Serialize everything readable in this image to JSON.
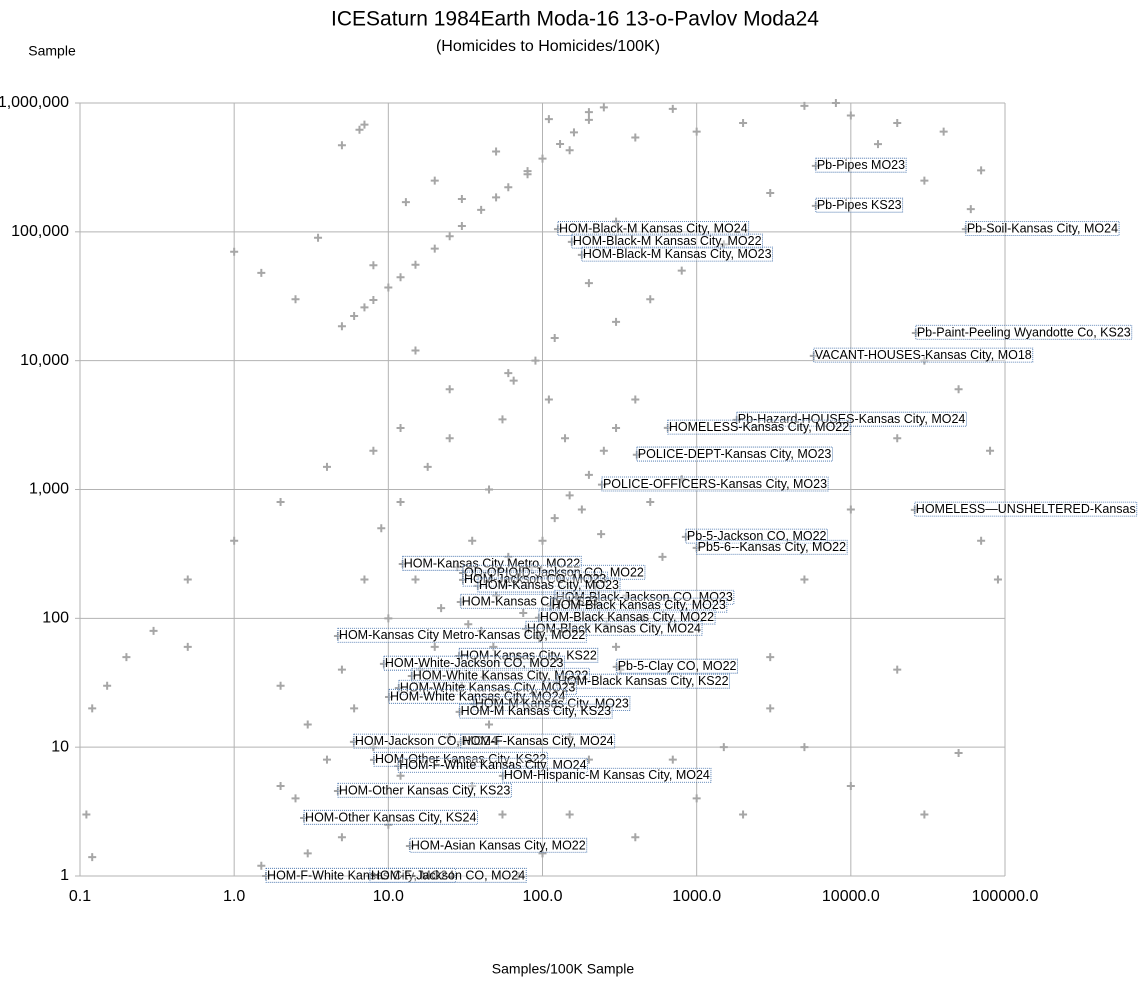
{
  "chart_data": {
    "type": "scatter",
    "title": "ICESaturn 1984Earth Moda-16 13-o-Pavlov Moda24",
    "subtitle": "(Homicides to Homicides/100K)",
    "x_label": "Samples/100K Sample",
    "y_label": "Sample",
    "xscale": "log",
    "yscale": "log",
    "grid": true,
    "color": "#a6a6a6",
    "xlim": [
      0.1,
      100000
    ],
    "ylim": [
      1,
      1000000
    ],
    "xticks": [
      {
        "value": 0.1,
        "label": "0.1"
      },
      {
        "value": 1,
        "label": "1.0"
      },
      {
        "value": 10,
        "label": "10.0"
      },
      {
        "value": 100,
        "label": "100.0"
      },
      {
        "value": 1000,
        "label": "1000.0"
      },
      {
        "value": 10000,
        "label": "10000.0"
      },
      {
        "value": 100000,
        "label": "100000.0"
      }
    ],
    "yticks": [
      1,
      10,
      100,
      {
        "value": 1000,
        "label": "1,000"
      },
      {
        "value": 10000,
        "label": "10,000"
      },
      {
        "value": 100000,
        "label": "100,000"
      },
      {
        "value": 1000000,
        "label": "1,000,000"
      }
    ],
    "x": [
      5,
      6,
      7,
      8,
      10,
      12,
      15,
      20,
      25,
      30,
      40,
      50,
      60,
      80,
      100,
      130,
      160,
      200,
      250,
      5,
      6.5,
      7,
      13,
      20,
      30,
      50,
      80,
      110,
      150,
      200,
      300,
      400,
      700,
      1000,
      2000,
      5000,
      8000,
      10000,
      20000,
      40000,
      70000,
      60000,
      30000,
      15000,
      3000,
      1500,
      800,
      500,
      300,
      200,
      120,
      60,
      25,
      12,
      8,
      4,
      2,
      1,
      0.5,
      0.3,
      0.2,
      0.15,
      0.12,
      0.11,
      0.12,
      0.5,
      1,
      1.5,
      2.5,
      3.5,
      8,
      15,
      2,
      3,
      5,
      1.5,
      1000,
      2000,
      1500,
      3000,
      5000,
      10000,
      20000,
      30000,
      50000,
      70000,
      90000,
      80000,
      50000,
      30000,
      20000,
      10000,
      5000,
      3000,
      700,
      400,
      300,
      150,
      10,
      15,
      20,
      30,
      40,
      50,
      60,
      70,
      80,
      100,
      120,
      150,
      200,
      250,
      300,
      400,
      500,
      600,
      800,
      5,
      6,
      8,
      3,
      4,
      2,
      2.5,
      7,
      9,
      12,
      18,
      25,
      35,
      45,
      55,
      65,
      90,
      110,
      140,
      180,
      220,
      260,
      320,
      25,
      35,
      45,
      55,
      20,
      12,
      10,
      70,
      100,
      150,
      200,
      16,
      22,
      28,
      33,
      42,
      48,
      58,
      75,
      85,
      95,
      130,
      170,
      240,
      350,
      450
    ],
    "y": [
      18500,
      22200,
      25900,
      29600,
      37000,
      44400,
      55500,
      74000,
      92500,
      111000,
      148000,
      185000,
      222000,
      296000,
      370000,
      481000,
      592000,
      740000,
      925000,
      470000,
      620000,
      680000,
      170000,
      250000,
      180000,
      420000,
      280000,
      750000,
      430000,
      850000,
      120000,
      540000,
      900000,
      600000,
      700000,
      950000,
      1000000,
      800000,
      700000,
      600000,
      300000,
      150000,
      250000,
      480000,
      200000,
      80000,
      50000,
      30000,
      20000,
      40000,
      15000,
      8000,
      6000,
      3000,
      2000,
      1500,
      800,
      400,
      200,
      80,
      50,
      30,
      20,
      3,
      1.4,
      60,
      70000,
      48000,
      30000,
      90000,
      55000,
      12000,
      5,
      1.5,
      2,
      1.2,
      4,
      3,
      10,
      20,
      10,
      5,
      40,
      3,
      9,
      400,
      200,
      2000,
      6000,
      10000,
      2500,
      700,
      200,
      50,
      8,
      2,
      60,
      3,
      100,
      200,
      60,
      30,
      80,
      150,
      300,
      50,
      20,
      400,
      600,
      900,
      1300,
      2000,
      3000,
      5000,
      800,
      300,
      1200,
      40,
      20,
      10,
      15,
      8,
      30,
      4,
      200,
      500,
      800,
      1500,
      2500,
      400,
      1000,
      3500,
      7000,
      10000,
      5000,
      2500,
      700,
      180,
      90,
      40,
      12,
      5,
      15,
      3,
      1,
      6,
      2.5,
      1,
      1.5,
      12,
      8,
      40,
      120,
      250,
      90,
      35,
      60,
      180,
      110,
      250,
      70,
      200,
      130,
      450,
      150,
      100
    ],
    "annotations": [
      {
        "text": "Pb-Pipes MO23",
        "x": 5930,
        "y": 325000
      },
      {
        "text": "Pb-Pipes KS23",
        "x": 5930,
        "y": 159000
      },
      {
        "text": "Pb-Soil-Kansas City, MO24",
        "x": 55700,
        "y": 105000
      },
      {
        "text": "HOM-Black-M Kansas City, MO24",
        "x": 126,
        "y": 105000
      },
      {
        "text": "HOM-Black-M Kansas City, MO22",
        "x": 155,
        "y": 83600
      },
      {
        "text": "HOM-Black-M Kansas City, MO23",
        "x": 180,
        "y": 66300
      },
      {
        "text": "Pb-Paint-Peeling Wyandotte Co, KS23",
        "x": 26400,
        "y": 16400
      },
      {
        "text": "VACANT-HOUSES-Kansas City, MO18",
        "x": 5750,
        "y": 10900
      },
      {
        "text": "Pb-Hazard-HOUSES-Kansas City, MO24",
        "x": 1820,
        "y": 3470
      },
      {
        "text": "HOMELESS-Kansas City, MO22",
        "x": 650,
        "y": 3010
      },
      {
        "text": "POLICE-DEPT-Kansas City, MO23",
        "x": 409,
        "y": 1860
      },
      {
        "text": "POLICE-OFFICERS-Kansas City, MO23",
        "x": 243,
        "y": 1090
      },
      {
        "text": "HOMELESS—UNSHELTERED-Kansas",
        "x": 26000,
        "y": 695
      },
      {
        "text": "Pb-5-Jackson CO, MO22",
        "x": 851,
        "y": 429
      },
      {
        "text": "Pb5-6--Kansas City, MO22",
        "x": 1000,
        "y": 352
      },
      {
        "text": "HOM-Kansas City Metro, MO22",
        "x": 12.4,
        "y": 264
      },
      {
        "text": "OD-OPIOID-Jackson CO, MO22",
        "x": 30.5,
        "y": 225
      },
      {
        "text": "HOM-Jackson CO, MO23",
        "x": 30.5,
        "y": 199
      },
      {
        "text": "HOM-Kansas City, MO23",
        "x": 38.1,
        "y": 179
      },
      {
        "text": "HOM-Black-Jackson CO, MO23",
        "x": 120,
        "y": 144
      },
      {
        "text": "HOM-Kansas City, KS23",
        "x": 29.5,
        "y": 134
      },
      {
        "text": "HOM-Black Kansas City, MO23",
        "x": 113,
        "y": 125
      },
      {
        "text": "HOM-Black Kansas City, MO22",
        "x": 94.8,
        "y": 101
      },
      {
        "text": "HOM-Black Kansas City, MO24",
        "x": 78,
        "y": 82.7
      },
      {
        "text": "HOM-Kansas City Metro-Kansas City, MO22",
        "x": 4.71,
        "y": 73
      },
      {
        "text": "HOM-Kansas City, KS22",
        "x": 28.8,
        "y": 51
      },
      {
        "text": "HOM-White-Jackson CO, MO23",
        "x": 9.36,
        "y": 44.3
      },
      {
        "text": "Pb-5-Clay CO, MO22",
        "x": 303,
        "y": 42
      },
      {
        "text": "HOM-White Kansas City, MO22",
        "x": 14.2,
        "y": 35.7
      },
      {
        "text": "HOM-Black Kansas City, KS22",
        "x": 124,
        "y": 32.1
      },
      {
        "text": "HOM-White Kansas City, MO23",
        "x": 11.7,
        "y": 28.8
      },
      {
        "text": "HOM-White Kansas City, MO24",
        "x": 10.1,
        "y": 24.5
      },
      {
        "text": "HOM-M Kansas City, MO23",
        "x": 35.9,
        "y": 21.6
      },
      {
        "text": "HOM-M Kansas City, KS23",
        "x": 29,
        "y": 18.8
      },
      {
        "text": "HOM-Jackson CO, MO24",
        "x": 5.98,
        "y": 11
      },
      {
        "text": "HOM-F-Kansas City, MO24",
        "x": 29.5,
        "y": 11
      },
      {
        "text": "HOM-Other Kansas City, KS22",
        "x": 8.07,
        "y": 7.96
      },
      {
        "text": "HOM-F-White Kansas City, MO24",
        "x": 11.6,
        "y": 7.15
      },
      {
        "text": "HOM-Hispanic-M Kansas City, MO24",
        "x": 55.3,
        "y": 5.98
      },
      {
        "text": "HOM-Other Kansas City, KS23",
        "x": 4.71,
        "y": 4.57
      },
      {
        "text": "HOM-Other Kansas City, KS24",
        "x": 2.84,
        "y": 2.82
      },
      {
        "text": "HOM-Asian Kansas City, MO22",
        "x": 13.8,
        "y": 1.71
      },
      {
        "text": "HOM-F-White Kansas City, MO24",
        "x": 1.61,
        "y": 1
      },
      {
        "text": "HOM-F-Jackson CO, MO24",
        "x": 7.6,
        "y": 1
      }
    ]
  }
}
